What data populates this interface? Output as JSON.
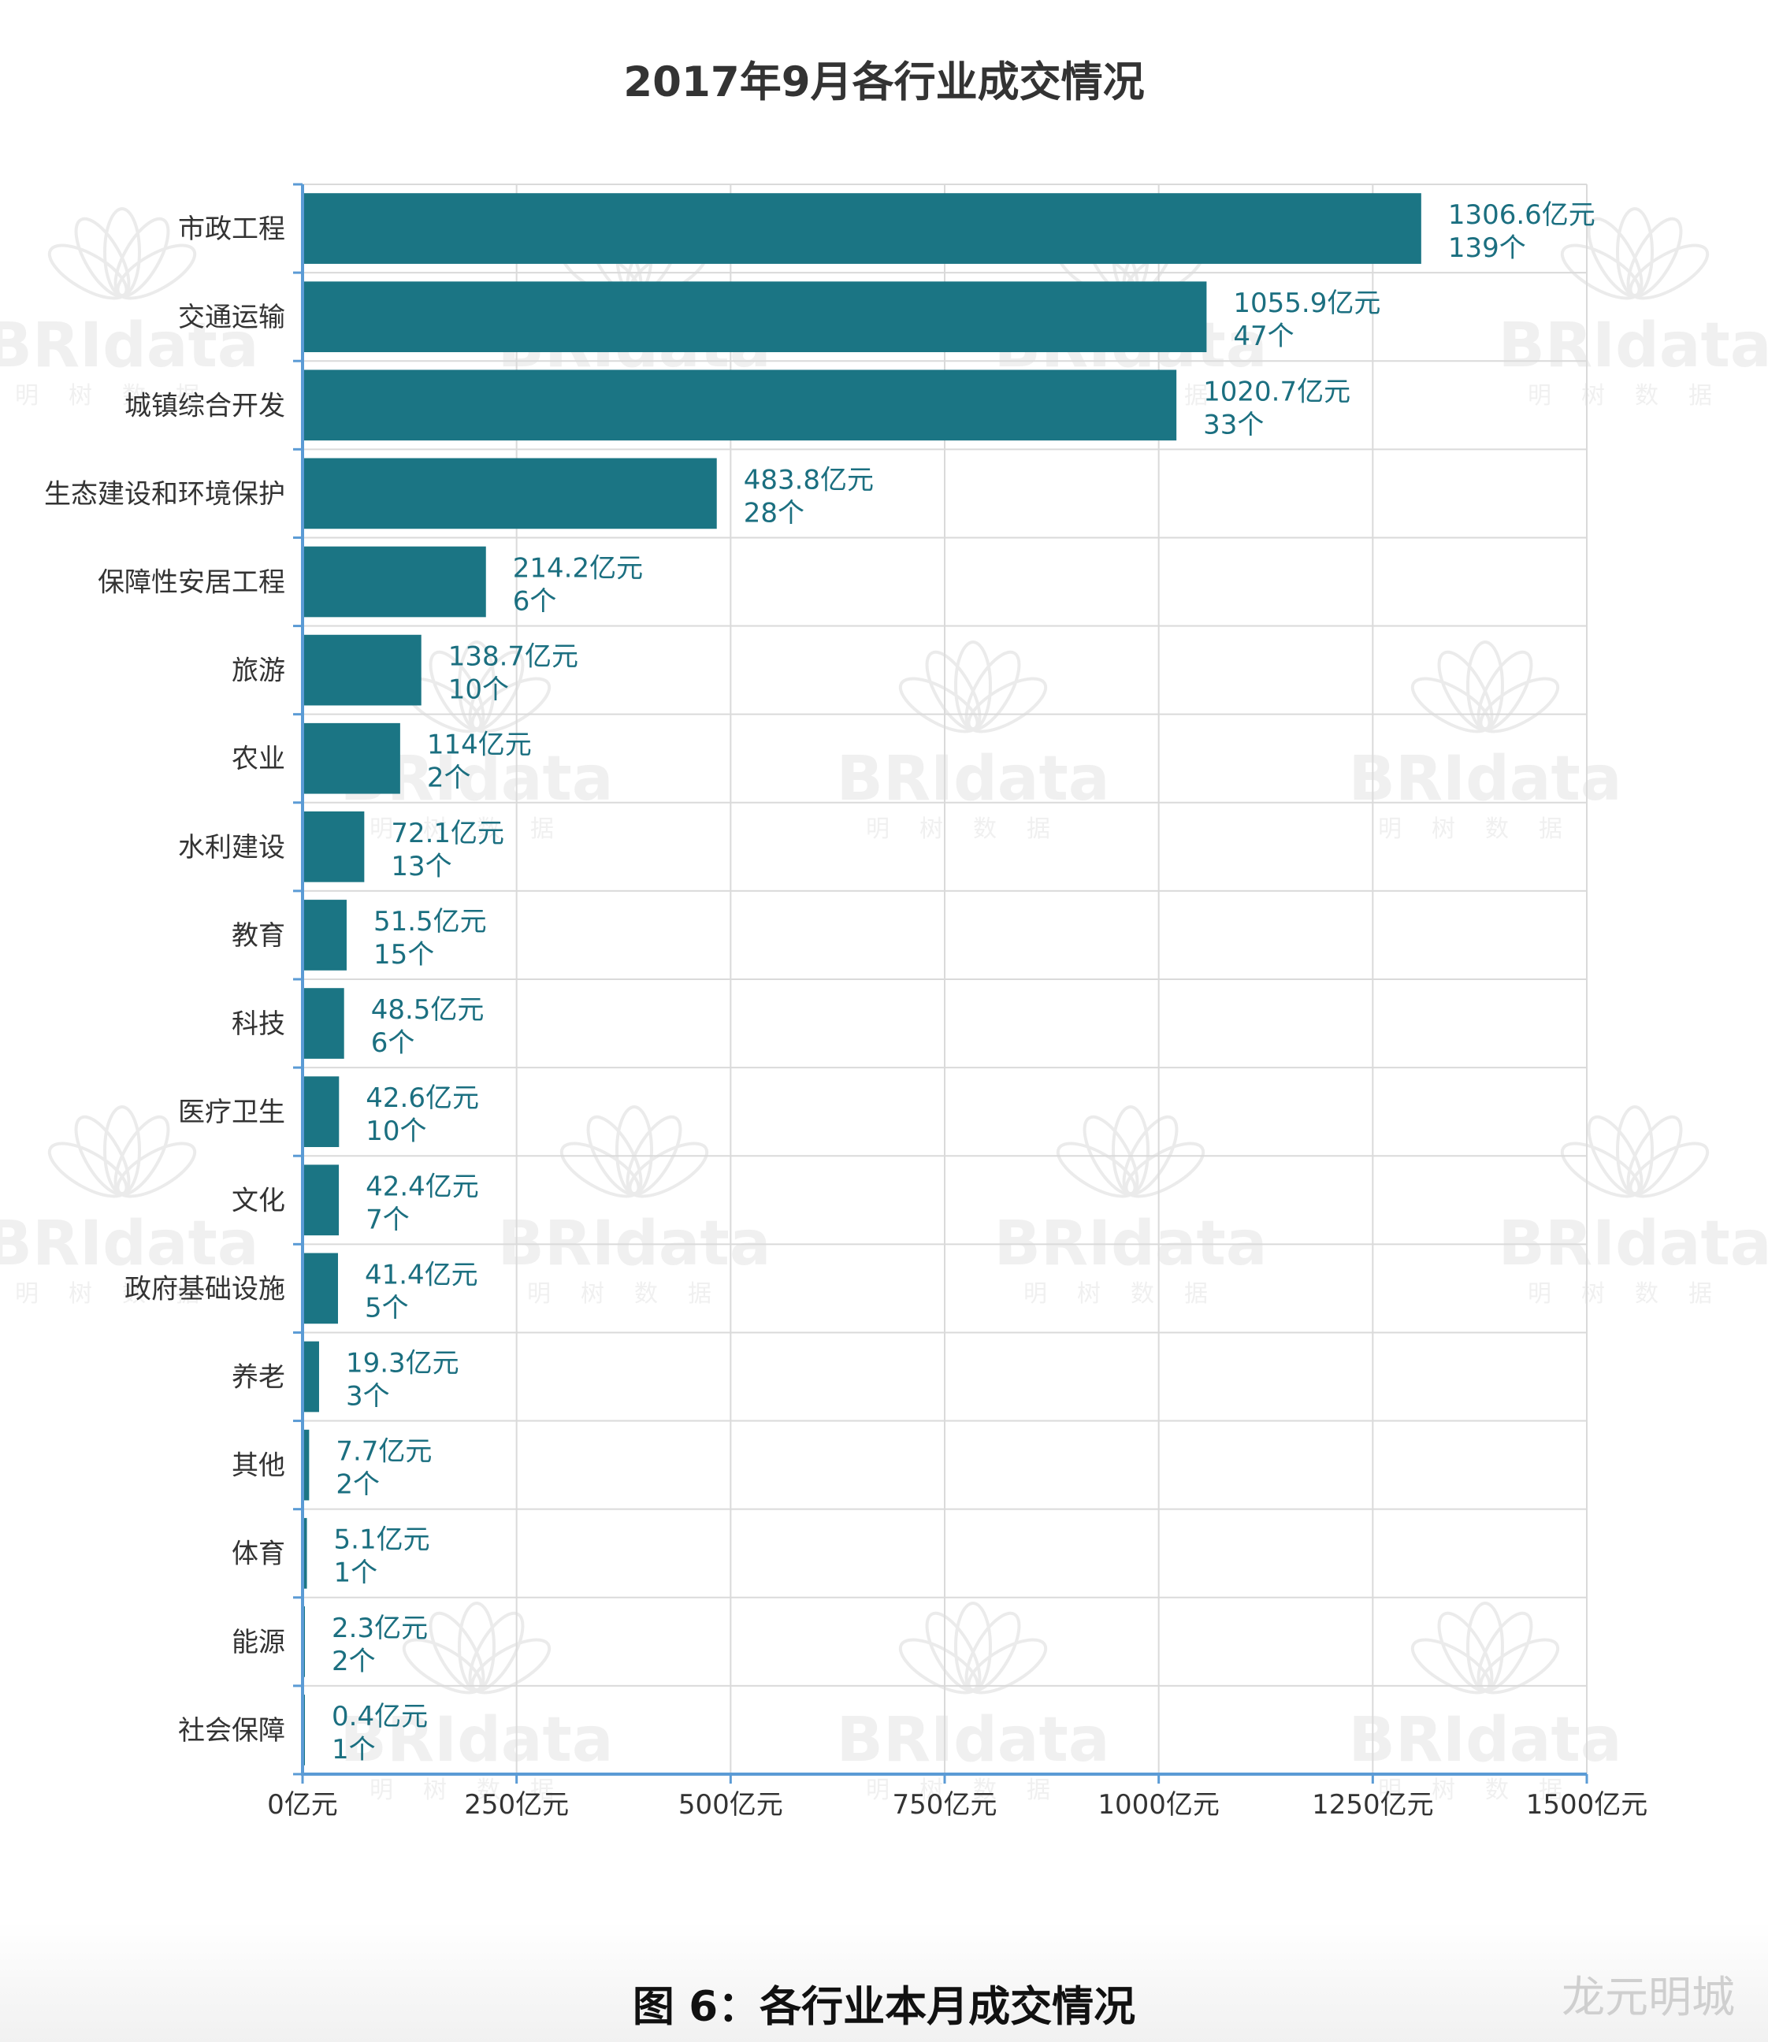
{
  "chart_data": {
    "type": "bar",
    "orientation": "horizontal",
    "title": "2017年9月各行业成交情况",
    "categories": [
      "市政工程",
      "交通运输",
      "城镇综合开发",
      "生态建设和环境保护",
      "保障性安居工程",
      "旅游",
      "农业",
      "水利建设",
      "教育",
      "科技",
      "医疗卫生",
      "文化",
      "政府基础设施",
      "养老",
      "其他",
      "体育",
      "能源",
      "社会保障"
    ],
    "values": [
      1306.6,
      1055.9,
      1020.7,
      483.8,
      214.2,
      138.7,
      114,
      72.1,
      51.5,
      48.5,
      42.6,
      42.4,
      41.4,
      19.3,
      7.7,
      5.1,
      2.3,
      0.4
    ],
    "counts": [
      139,
      47,
      33,
      28,
      6,
      10,
      2,
      13,
      15,
      6,
      10,
      7,
      5,
      3,
      2,
      1,
      2,
      1
    ],
    "value_labels": [
      "1306.6亿元",
      "1055.9亿元",
      "1020.7亿元",
      "483.8亿元",
      "214.2亿元",
      "138.7亿元",
      "114亿元",
      "72.1亿元",
      "51.5亿元",
      "48.5亿元",
      "42.6亿元",
      "42.4亿元",
      "41.4亿元",
      "19.3亿元",
      "7.7亿元",
      "5.1亿元",
      "2.3亿元",
      "0.4亿元"
    ],
    "count_labels": [
      "139个",
      "47个",
      "33个",
      "28个",
      "6个",
      "10个",
      "2个",
      "13个",
      "15个",
      "6个",
      "10个",
      "7个",
      "5个",
      "3个",
      "2个",
      "1个",
      "2个",
      "1个"
    ],
    "x_ticks": [
      0,
      250,
      500,
      750,
      1000,
      1250,
      1500
    ],
    "x_tick_labels": [
      "0亿元",
      "250亿元",
      "500亿元",
      "750亿元",
      "1000亿元",
      "1250亿元",
      "1500亿元"
    ],
    "xlim": [
      0,
      1500
    ],
    "xlabel": "",
    "ylabel": "",
    "grid": true,
    "bar_color": "#1b7584",
    "label_color": "#1b6f80",
    "axis_color": "#5b9bd5"
  },
  "caption": "图 6：各行业本月成交情况",
  "source_mark": "龙元明城",
  "watermark": {
    "logo_text": "BRIdata",
    "sub_text": "明树数据"
  }
}
